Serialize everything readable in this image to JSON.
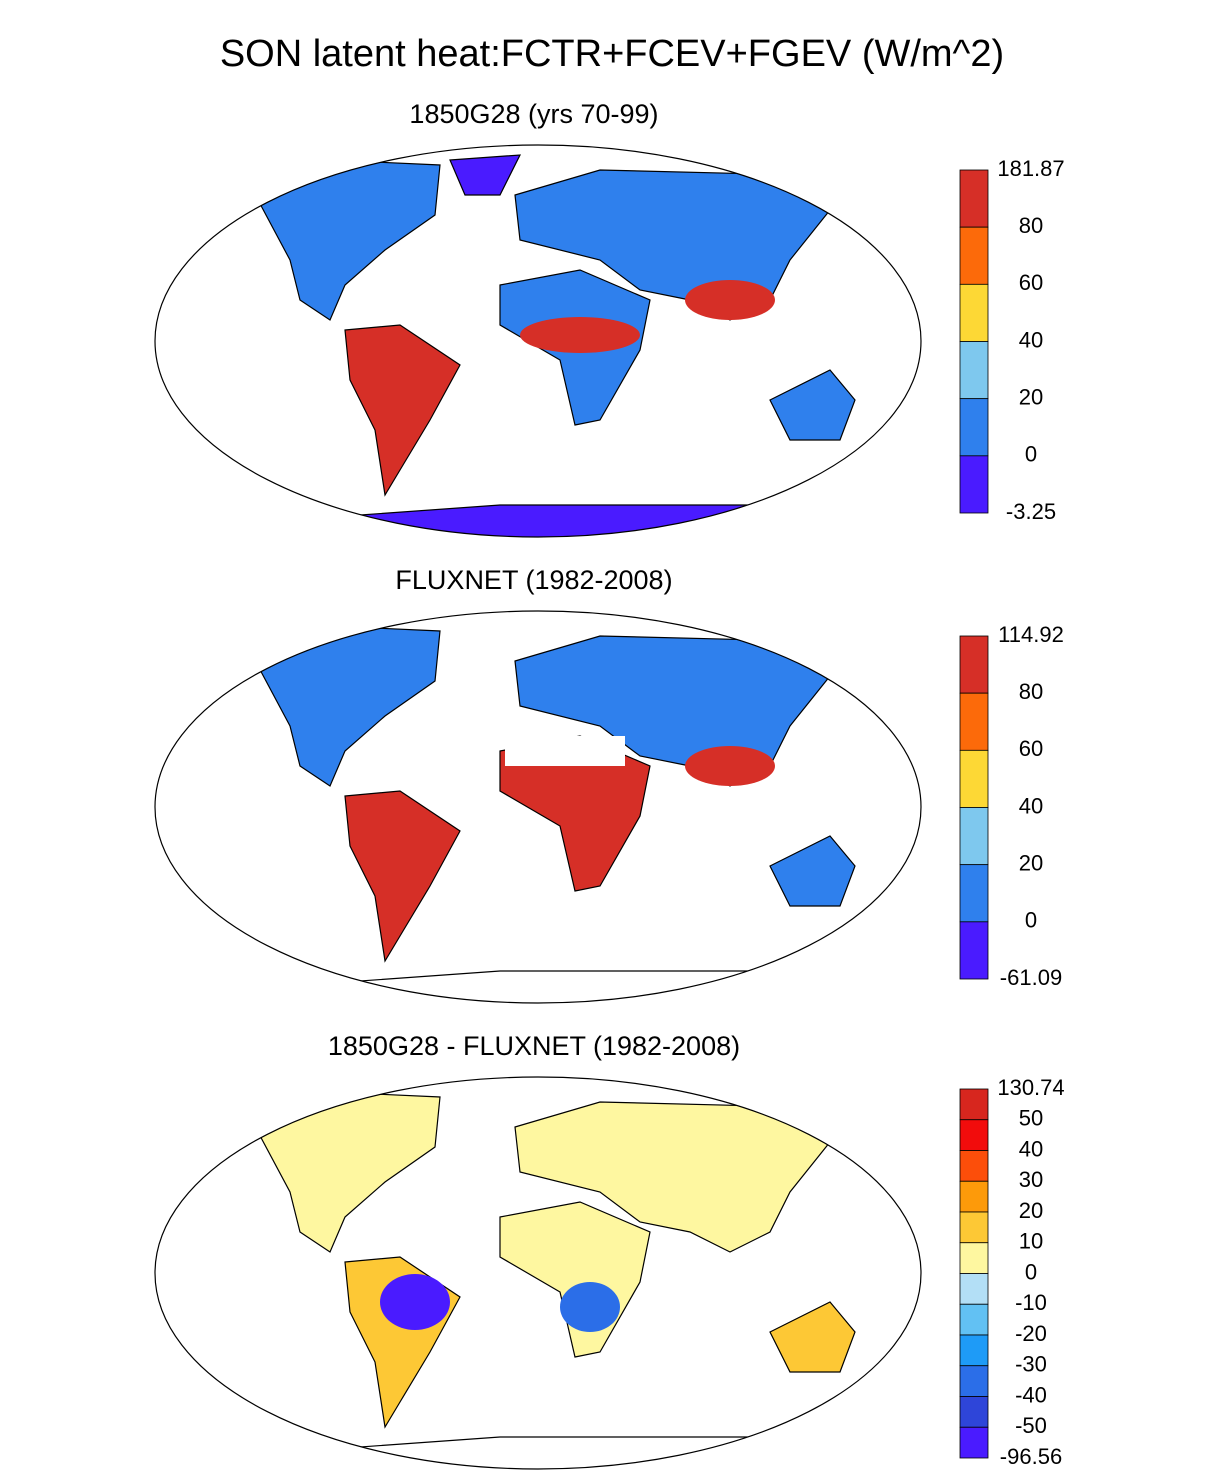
{
  "title": "SON latent heat:FCTR+FCEV+FGEV (W/m^2)",
  "panels": [
    {
      "title": "1850G28 (yrs 70-99)",
      "colorbar": {
        "labels": [
          "181.87",
          "80",
          "60",
          "40",
          "20",
          "0",
          "-3.25"
        ],
        "colors": [
          "#d62f27",
          "#fc6a0a",
          "#fdd835",
          "#7ec8ee",
          "#2f80ed",
          "#4a1bff"
        ]
      }
    },
    {
      "title": "FLUXNET (1982-2008)",
      "colorbar": {
        "labels": [
          "114.92",
          "80",
          "60",
          "40",
          "20",
          "0",
          "-61.09"
        ],
        "colors": [
          "#d62f27",
          "#fc6a0a",
          "#fdd835",
          "#7ec8ee",
          "#2f80ed",
          "#4a1bff"
        ]
      }
    },
    {
      "title": "1850G28 - FLUXNET (1982-2008)",
      "colorbar": {
        "labels": [
          "130.74",
          "50",
          "40",
          "30",
          "20",
          "10",
          "0",
          "-10",
          "-20",
          "-30",
          "-40",
          "-50",
          "-96.56"
        ],
        "colors": [
          "#d7261e",
          "#f20c0c",
          "#fc4e0a",
          "#fd9a0a",
          "#fdc835",
          "#fef7a0",
          "#b3dff6",
          "#62c1f3",
          "#1e9bf7",
          "#2b6ee8",
          "#2e45d9",
          "#4a1bff"
        ]
      }
    }
  ]
}
